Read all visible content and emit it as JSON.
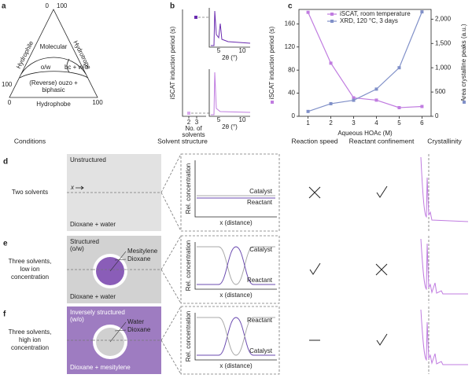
{
  "panel_a": {
    "letter": "a",
    "corner_labels": [
      "0",
      "100",
      "100",
      "0",
      "100"
    ],
    "texts": [
      "Hydrophile",
      "Hydrotrope",
      "Hydrophobe",
      "Molecular",
      "o/w",
      "bc + w/o",
      "(Reverse) ouzo +",
      "biphasic"
    ]
  },
  "panel_b": {
    "letter": "b",
    "y_label": "iSCAT induction period (s)",
    "xticks": [
      2,
      3
    ],
    "x_label": [
      "No. of",
      "solvents"
    ],
    "insets": [
      {
        "xticks": [
          5,
          10
        ],
        "x_label": "2θ (°)"
      },
      {
        "xticks": [
          5,
          10
        ],
        "x_label": "2θ (°)"
      }
    ]
  },
  "panel_c": {
    "letter": "c",
    "type": "line",
    "x_label": "Aqueous HOAc (M)",
    "y_label": "iSCAT induction period (s)",
    "y2_label": "Area crystalline peaks (a.u.)",
    "x": [
      1,
      2,
      3,
      4,
      5,
      6
    ],
    "xlim": [
      0.6,
      6.4
    ],
    "xticks": [
      1,
      2,
      3,
      4,
      5,
      6
    ],
    "ylim": [
      0,
      185
    ],
    "yticks": [
      0,
      40,
      80,
      120,
      160
    ],
    "y2lim": [
      0,
      2200
    ],
    "y2ticks": [
      0,
      500,
      {
        "value": 1000,
        "label": "1,000"
      },
      {
        "value": 1500,
        "label": "1,500"
      },
      {
        "value": 2000,
        "label": "2,000"
      }
    ],
    "series": [
      {
        "name": "iSCAT, room temperature",
        "color": "#c07ce0",
        "values": [
          180,
          92,
          32,
          28,
          15,
          17
        ]
      },
      {
        "name": "XRD, 120 °C, 3 days",
        "color": "#8090c8",
        "axis": "y2",
        "values": [
          100,
          260,
          330,
          560,
          1000,
          2150
        ]
      }
    ]
  },
  "headers": [
    "Conditions",
    "Solvent structure",
    "Reaction speed",
    "Reactant confinement",
    "Crystallinity"
  ],
  "rows": [
    {
      "letter": "d",
      "conditions": [
        "Two solvents"
      ],
      "structure": [
        "Unstructured"
      ],
      "axis_marker": "x",
      "inner": [],
      "footer": "Dioxane + water",
      "y_label": "Rel. concentration",
      "x_label": "x (distance)",
      "curve_labels": [
        "Catalyst",
        "Reactant"
      ]
    },
    {
      "letter": "e",
      "conditions": [
        "Three solvents,",
        "low ion",
        "concentration"
      ],
      "structure": [
        "Structured",
        "(o/w)"
      ],
      "inner": [
        "Mesitylene",
        "Dioxane"
      ],
      "footer": "Dioxane + water",
      "y_label": "Rel. concentration",
      "x_label": "x (distance)",
      "curve_labels": [
        "Catalyst",
        "Reactant"
      ]
    },
    {
      "letter": "f",
      "conditions": [
        "Three solvents,",
        "high ion",
        "concentration"
      ],
      "structure": [
        "Inversely structured",
        "(w/o)"
      ],
      "inner": [
        "Water",
        "Dioxane"
      ],
      "footer": "Dioxane + mesitylene",
      "y_label": "Rel. concentration",
      "x_label": "x (distance)",
      "curve_labels": [
        "Reactant",
        "Catalyst"
      ]
    }
  ]
}
